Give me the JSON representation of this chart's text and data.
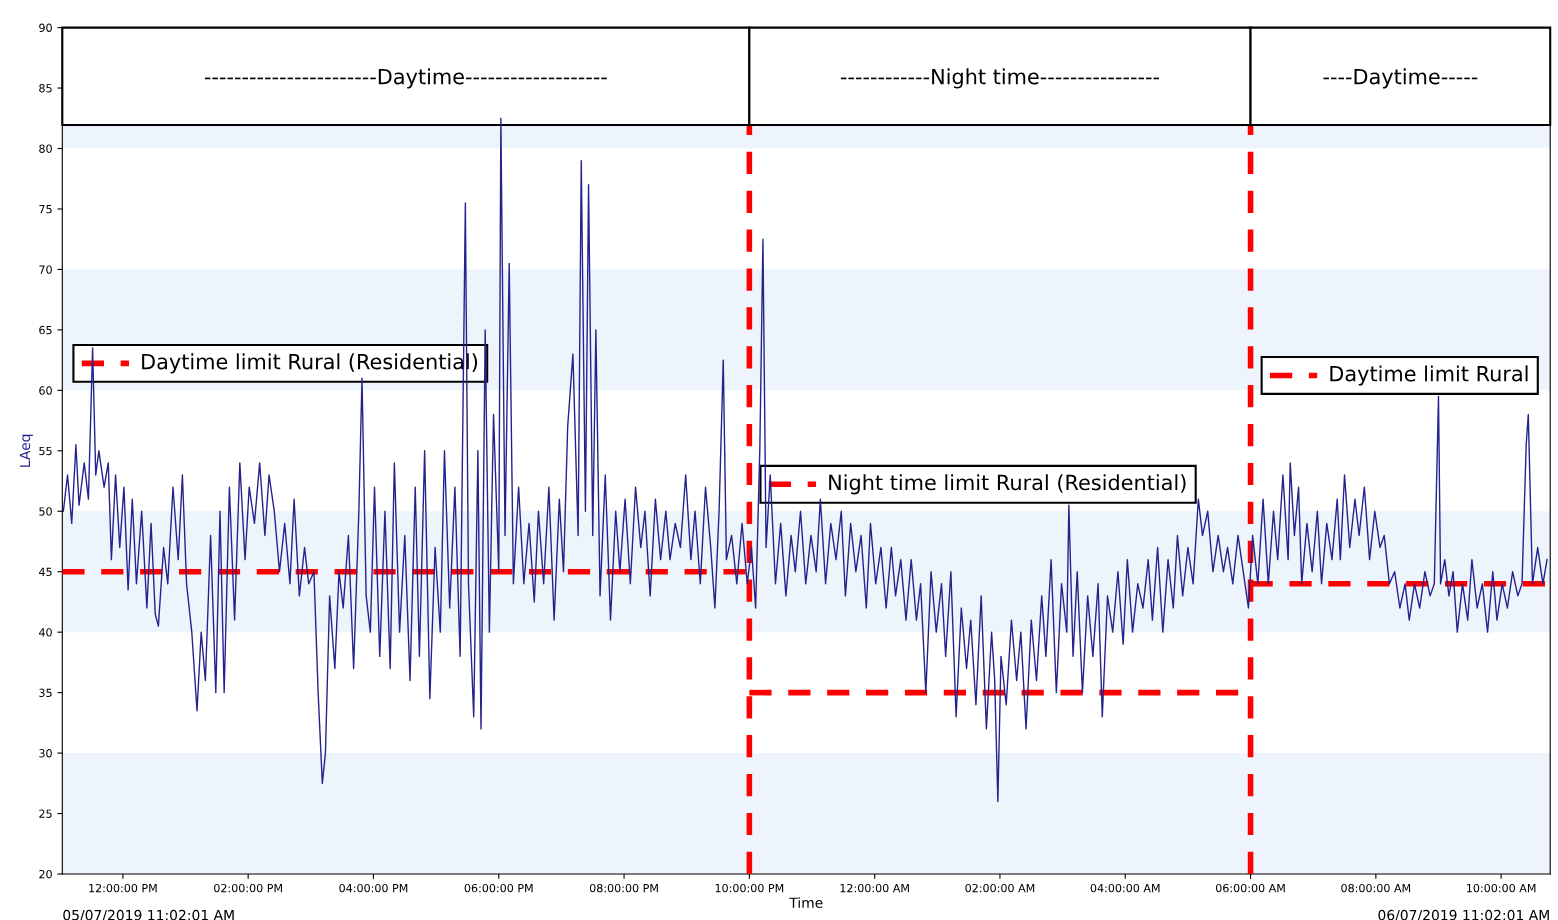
{
  "chart_data": {
    "type": "line",
    "xlabel": "Time",
    "ylabel": "LAeq",
    "xlim": [
      "2019-07-05T11:02",
      "2019-07-06T10:47"
    ],
    "ylim": [
      20,
      90
    ],
    "xticks": [
      {
        "value": "2019-07-05T12:00",
        "label": "12:00:00 PM"
      },
      {
        "value": "2019-07-05T14:00",
        "label": "02:00:00 PM"
      },
      {
        "value": "2019-07-05T16:00",
        "label": "04:00:00 PM"
      },
      {
        "value": "2019-07-05T18:00",
        "label": "06:00:00 PM"
      },
      {
        "value": "2019-07-05T20:00",
        "label": "08:00:00 PM"
      },
      {
        "value": "2019-07-05T22:00",
        "label": "10:00:00 PM"
      },
      {
        "value": "2019-07-06T00:00",
        "label": "12:00:00 AM"
      },
      {
        "value": "2019-07-06T02:00",
        "label": "02:00:00 AM"
      },
      {
        "value": "2019-07-06T04:00",
        "label": "04:00:00 AM"
      },
      {
        "value": "2019-07-06T06:00",
        "label": "06:00:00 AM"
      },
      {
        "value": "2019-07-06T08:00",
        "label": "08:00:00 AM"
      },
      {
        "value": "2019-07-06T10:00",
        "label": "10:00:00 AM"
      }
    ],
    "yticks": [
      20,
      25,
      30,
      35,
      40,
      45,
      50,
      55,
      60,
      65,
      70,
      75,
      80,
      85,
      90
    ],
    "grid": false,
    "legend": "center",
    "series": [
      {
        "color": "#23238e",
        "line_style": "solid",
        "x": [
          "2019-07-05T11:03",
          "2019-07-05T11:07",
          "2019-07-05T11:11",
          "2019-07-05T11:15",
          "2019-07-05T11:18",
          "2019-07-05T11:23",
          "2019-07-05T11:27",
          "2019-07-05T11:31",
          "2019-07-05T11:34",
          "2019-07-05T11:37",
          "2019-07-05T11:42",
          "2019-07-05T11:46",
          "2019-07-05T11:49",
          "2019-07-05T11:53",
          "2019-07-05T11:57",
          "2019-07-05T12:01",
          "2019-07-05T12:05",
          "2019-07-05T12:09",
          "2019-07-05T12:13",
          "2019-07-05T12:18",
          "2019-07-05T12:23",
          "2019-07-05T12:27",
          "2019-07-05T12:31",
          "2019-07-05T12:34",
          "2019-07-05T12:39",
          "2019-07-05T12:43",
          "2019-07-05T12:48",
          "2019-07-05T12:53",
          "2019-07-05T12:57",
          "2019-07-05T13:01",
          "2019-07-05T13:06",
          "2019-07-05T13:11",
          "2019-07-05T13:15",
          "2019-07-05T13:19",
          "2019-07-05T13:24",
          "2019-07-05T13:29",
          "2019-07-05T13:33",
          "2019-07-05T13:37",
          "2019-07-05T13:42",
          "2019-07-05T13:47",
          "2019-07-05T13:52",
          "2019-07-05T13:57",
          "2019-07-05T14:01",
          "2019-07-05T14:06",
          "2019-07-05T14:11",
          "2019-07-05T14:16",
          "2019-07-05T14:20",
          "2019-07-05T14:25",
          "2019-07-05T14:30",
          "2019-07-05T14:35",
          "2019-07-05T14:40",
          "2019-07-05T14:44",
          "2019-07-05T14:49",
          "2019-07-05T14:54",
          "2019-07-05T14:58",
          "2019-07-05T15:03",
          "2019-07-05T15:07",
          "2019-07-05T15:11",
          "2019-07-05T15:14",
          "2019-07-05T15:18",
          "2019-07-05T15:23",
          "2019-07-05T15:27",
          "2019-07-05T15:31",
          "2019-07-05T15:36",
          "2019-07-05T15:41",
          "2019-07-05T15:46",
          "2019-07-05T15:49",
          "2019-07-05T15:53",
          "2019-07-05T15:57",
          "2019-07-05T16:01",
          "2019-07-05T16:06",
          "2019-07-05T16:11",
          "2019-07-05T16:16",
          "2019-07-05T16:20",
          "2019-07-05T16:25",
          "2019-07-05T16:30",
          "2019-07-05T16:35",
          "2019-07-05T16:40",
          "2019-07-05T16:44",
          "2019-07-05T16:49",
          "2019-07-05T16:54",
          "2019-07-05T16:59",
          "2019-07-05T17:04",
          "2019-07-05T17:08",
          "2019-07-05T17:13",
          "2019-07-05T17:18",
          "2019-07-05T17:23",
          "2019-07-05T17:28",
          "2019-07-05T17:31",
          "2019-07-05T17:36",
          "2019-07-05T17:40",
          "2019-07-05T17:43",
          "2019-07-05T17:47",
          "2019-07-05T17:51",
          "2019-07-05T17:55",
          "2019-07-05T18:00",
          "2019-07-05T18:02",
          "2019-07-05T18:06",
          "2019-07-05T18:10",
          "2019-07-05T18:14",
          "2019-07-05T18:19",
          "2019-07-05T18:24",
          "2019-07-05T18:29",
          "2019-07-05T18:34",
          "2019-07-05T18:38",
          "2019-07-05T18:43",
          "2019-07-05T18:48",
          "2019-07-05T18:53",
          "2019-07-05T18:58",
          "2019-07-05T19:02",
          "2019-07-05T19:06",
          "2019-07-05T19:11",
          "2019-07-05T19:16",
          "2019-07-05T19:19",
          "2019-07-05T19:23",
          "2019-07-05T19:26",
          "2019-07-05T19:30",
          "2019-07-05T19:33",
          "2019-07-05T19:37",
          "2019-07-05T19:42",
          "2019-07-05T19:47",
          "2019-07-05T19:52",
          "2019-07-05T19:56",
          "2019-07-05T20:01",
          "2019-07-05T20:06",
          "2019-07-05T20:11",
          "2019-07-05T20:16",
          "2019-07-05T20:20",
          "2019-07-05T20:25",
          "2019-07-05T20:30",
          "2019-07-05T20:35",
          "2019-07-05T20:40",
          "2019-07-05T20:44",
          "2019-07-05T20:49",
          "2019-07-05T20:54",
          "2019-07-05T20:59",
          "2019-07-05T21:04",
          "2019-07-05T21:08",
          "2019-07-05T21:13",
          "2019-07-05T21:18",
          "2019-07-05T21:23",
          "2019-07-05T21:27",
          "2019-07-05T21:31",
          "2019-07-05T21:35",
          "2019-07-05T21:38",
          "2019-07-05T21:43",
          "2019-07-05T21:48",
          "2019-07-05T21:53",
          "2019-07-05T21:58",
          "2019-07-05T22:02",
          "2019-07-05T22:06",
          "2019-07-05T22:10",
          "2019-07-05T22:13",
          "2019-07-05T22:16",
          "2019-07-05T22:20",
          "2019-07-05T22:25",
          "2019-07-05T22:30",
          "2019-07-05T22:35",
          "2019-07-05T22:40",
          "2019-07-05T22:44",
          "2019-07-05T22:49",
          "2019-07-05T22:54",
          "2019-07-05T22:59",
          "2019-07-05T23:04",
          "2019-07-05T23:08",
          "2019-07-05T23:13",
          "2019-07-05T23:18",
          "2019-07-05T23:23",
          "2019-07-05T23:28",
          "2019-07-05T23:32",
          "2019-07-05T23:37",
          "2019-07-05T23:42",
          "2019-07-05T23:47",
          "2019-07-05T23:52",
          "2019-07-05T23:56",
          "2019-07-06T00:01",
          "2019-07-06T00:06",
          "2019-07-06T00:11",
          "2019-07-06T00:16",
          "2019-07-06T00:20",
          "2019-07-06T00:25",
          "2019-07-06T00:30",
          "2019-07-06T00:35",
          "2019-07-06T00:40",
          "2019-07-06T00:44",
          "2019-07-06T00:49",
          "2019-07-06T00:54",
          "2019-07-06T00:59",
          "2019-07-06T01:04",
          "2019-07-06T01:08",
          "2019-07-06T01:13",
          "2019-07-06T01:18",
          "2019-07-06T01:23",
          "2019-07-06T01:28",
          "2019-07-06T01:32",
          "2019-07-06T01:37",
          "2019-07-06T01:42",
          "2019-07-06T01:47",
          "2019-07-06T01:52",
          "2019-07-06T01:55",
          "2019-07-06T01:58",
          "2019-07-06T02:01",
          "2019-07-06T02:06",
          "2019-07-06T02:11",
          "2019-07-06T02:16",
          "2019-07-06T02:20",
          "2019-07-06T02:25",
          "2019-07-06T02:30",
          "2019-07-06T02:35",
          "2019-07-06T02:40",
          "2019-07-06T02:44",
          "2019-07-06T02:49",
          "2019-07-06T02:54",
          "2019-07-06T02:59",
          "2019-07-06T03:04",
          "2019-07-06T03:06",
          "2019-07-06T03:10",
          "2019-07-06T03:14",
          "2019-07-06T03:19",
          "2019-07-06T03:24",
          "2019-07-06T03:29",
          "2019-07-06T03:34",
          "2019-07-06T03:38",
          "2019-07-06T03:43",
          "2019-07-06T03:48",
          "2019-07-06T03:53",
          "2019-07-06T03:58",
          "2019-07-06T04:02",
          "2019-07-06T04:07",
          "2019-07-06T04:12",
          "2019-07-06T04:17",
          "2019-07-06T04:22",
          "2019-07-06T04:26",
          "2019-07-06T04:31",
          "2019-07-06T04:36",
          "2019-07-06T04:41",
          "2019-07-06T04:46",
          "2019-07-06T04:50",
          "2019-07-06T04:55",
          "2019-07-06T05:00",
          "2019-07-06T05:05",
          "2019-07-06T05:10",
          "2019-07-06T05:14",
          "2019-07-06T05:19",
          "2019-07-06T05:24",
          "2019-07-06T05:29",
          "2019-07-06T05:34",
          "2019-07-06T05:38",
          "2019-07-06T05:43",
          "2019-07-06T05:48",
          "2019-07-06T05:53",
          "2019-07-06T05:58",
          "2019-07-06T06:02",
          "2019-07-06T06:07",
          "2019-07-06T06:12",
          "2019-07-06T06:17",
          "2019-07-06T06:22",
          "2019-07-06T06:26",
          "2019-07-06T06:31",
          "2019-07-06T06:36",
          "2019-07-06T06:38",
          "2019-07-06T06:42",
          "2019-07-06T06:46",
          "2019-07-06T06:49",
          "2019-07-06T06:54",
          "2019-07-06T06:59",
          "2019-07-06T07:04",
          "2019-07-06T07:08",
          "2019-07-06T07:13",
          "2019-07-06T07:18",
          "2019-07-06T07:23",
          "2019-07-06T07:26",
          "2019-07-06T07:30",
          "2019-07-06T07:35",
          "2019-07-06T07:40",
          "2019-07-06T07:44",
          "2019-07-06T07:49",
          "2019-07-06T07:54",
          "2019-07-06T07:59",
          "2019-07-06T08:04",
          "2019-07-06T08:08",
          "2019-07-06T08:13",
          "2019-07-06T08:18",
          "2019-07-06T08:23",
          "2019-07-06T08:28",
          "2019-07-06T08:32",
          "2019-07-06T08:37",
          "2019-07-06T08:42",
          "2019-07-06T08:47",
          "2019-07-06T08:52",
          "2019-07-06T08:56",
          "2019-07-06T09:00",
          "2019-07-06T09:02",
          "2019-07-06T09:06",
          "2019-07-06T09:10",
          "2019-07-06T09:14",
          "2019-07-06T09:18",
          "2019-07-06T09:23",
          "2019-07-06T09:28",
          "2019-07-06T09:32",
          "2019-07-06T09:37",
          "2019-07-06T09:42",
          "2019-07-06T09:47",
          "2019-07-06T09:52",
          "2019-07-06T09:56",
          "2019-07-06T10:01",
          "2019-07-06T10:06",
          "2019-07-06T10:11",
          "2019-07-06T10:16",
          "2019-07-06T10:20",
          "2019-07-06T10:24",
          "2019-07-06T10:26",
          "2019-07-06T10:30",
          "2019-07-06T10:35",
          "2019-07-06T10:40",
          "2019-07-06T10:44"
        ],
        "values": [
          50,
          53,
          49,
          55.5,
          50.5,
          54,
          51,
          63.5,
          53,
          55,
          52,
          54,
          46,
          53,
          47,
          52,
          43.5,
          51,
          44,
          50,
          42,
          49,
          41.5,
          40.5,
          47,
          44,
          52,
          46,
          53,
          44,
          40,
          33.5,
          40,
          36,
          48,
          35,
          50,
          35,
          52,
          41,
          54,
          46,
          52,
          49,
          54,
          48,
          53,
          50,
          45,
          49,
          44,
          51,
          43,
          47,
          44,
          45,
          35,
          27.5,
          30,
          43,
          37,
          45,
          42,
          48,
          37,
          50,
          61,
          43,
          40,
          52,
          38,
          50,
          37,
          54,
          40,
          48,
          36,
          52,
          38,
          55,
          34.5,
          47,
          40,
          55,
          42,
          52,
          38,
          75.5,
          44,
          33,
          55,
          32,
          65,
          40,
          58,
          45,
          82.5,
          48,
          70.5,
          44,
          52,
          44,
          49,
          42.5,
          50,
          44,
          52,
          41,
          51,
          45,
          57,
          63,
          48,
          79,
          50,
          77,
          48,
          65,
          43,
          53,
          41,
          50,
          45,
          51,
          44,
          52,
          47,
          50,
          43,
          51,
          46,
          50,
          46,
          49,
          47,
          53,
          46,
          50,
          44,
          52,
          47,
          42,
          50,
          62.5,
          46,
          48,
          44,
          49,
          44,
          47,
          42,
          55,
          72.5,
          47,
          53,
          44,
          49,
          43,
          48,
          45,
          50,
          44,
          48,
          45,
          51,
          44,
          49,
          46,
          50,
          43,
          49,
          45,
          48,
          42,
          49,
          44,
          47,
          42,
          47,
          43,
          46,
          41,
          46,
          41,
          44,
          35,
          45,
          40,
          44,
          38,
          45,
          33,
          42,
          37,
          41,
          34,
          43,
          32,
          40,
          36,
          26,
          38,
          34,
          41,
          36,
          40,
          32,
          41,
          36,
          43,
          38,
          46,
          35,
          44,
          40,
          50.5,
          38,
          45,
          35,
          43,
          38,
          44,
          33,
          43,
          40,
          45,
          39,
          46,
          40,
          44,
          42,
          46,
          41,
          47,
          40,
          46,
          42,
          48,
          43,
          47,
          44,
          51,
          48,
          50,
          45,
          48,
          45,
          47,
          44,
          48,
          45,
          42,
          48,
          44,
          51,
          44,
          50,
          46,
          53,
          46,
          54,
          48,
          52,
          44,
          49,
          45,
          50,
          44,
          49,
          46,
          51,
          46,
          53,
          47,
          51,
          48,
          52,
          46,
          50,
          47,
          48,
          44,
          45,
          42,
          44,
          41,
          44,
          42,
          45,
          43,
          44,
          59.5,
          44,
          46,
          43,
          45,
          40,
          44,
          41,
          46,
          42,
          44,
          40,
          45,
          41,
          44,
          42,
          45,
          43,
          44,
          55.5,
          58,
          44,
          47,
          44,
          46
        ]
      },
      {
        "name": "Daytime limit Rural (Residential)",
        "color": "#ff0000",
        "line_style": "dashed",
        "x": [
          "2019-07-05T11:02",
          "2019-07-05T22:00"
        ],
        "values": [
          45,
          45
        ]
      },
      {
        "name": "Night time limit Rural (Residential)",
        "color": "#ff0000",
        "line_style": "dashed",
        "x": [
          "2019-07-05T22:00",
          "2019-07-06T06:00"
        ],
        "values": [
          35,
          35
        ]
      },
      {
        "name": "Daytime limit Rural",
        "color": "#ff0000",
        "line_style": "dashed",
        "x": [
          "2019-07-06T06:00",
          "2019-07-06T10:47"
        ],
        "values": [
          44,
          44
        ]
      }
    ],
    "ref_lines": [
      {
        "axis": "x",
        "value": "2019-07-05T22:00",
        "color": "#ff0000",
        "line_style": "dashed"
      },
      {
        "axis": "x",
        "value": "2019-07-06T06:00",
        "color": "#ff0000",
        "line_style": "dashed"
      }
    ],
    "bands": [
      {
        "axis": "y",
        "from": 20,
        "to": 30,
        "color": "#eef4fc"
      },
      {
        "axis": "y",
        "from": 40,
        "to": 50,
        "color": "#eef4fc"
      },
      {
        "axis": "y",
        "from": 60,
        "to": 70,
        "color": "#eef4fc"
      },
      {
        "axis": "y",
        "from": 80,
        "to": 90,
        "color": "#eef4fc"
      },
      {
        "axis": "x",
        "from": "2019-07-05T11:02",
        "to": "2019-07-05T22:00",
        "label": "-----------------------Daytime-------------------"
      },
      {
        "axis": "x",
        "from": "2019-07-05T22:00",
        "to": "2019-07-06T06:00",
        "label": "------------Night time----------------"
      },
      {
        "axis": "x",
        "from": "2019-07-06T06:00",
        "to": "2019-07-06T10:47",
        "label": "----Daytime-----"
      }
    ],
    "annotations": [
      "05/07/2019 11:02:01 AM",
      "06/07/2019 11:02:01 AM"
    ]
  }
}
